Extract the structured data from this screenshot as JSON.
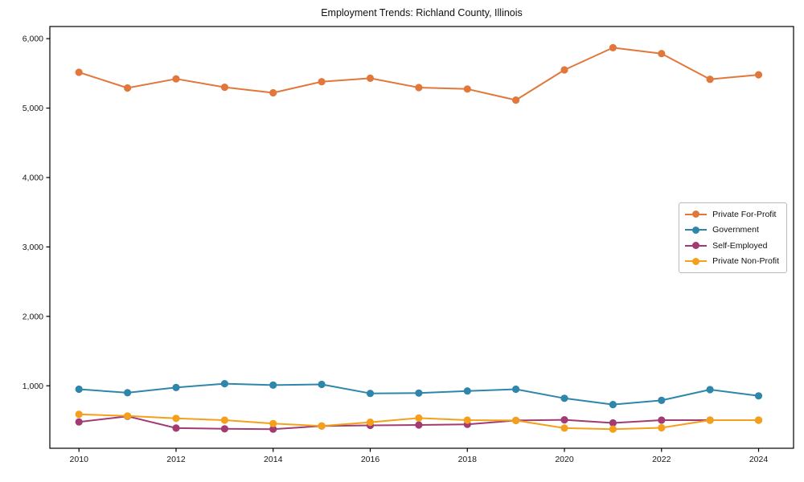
{
  "chart_data": {
    "type": "line",
    "title": "Employment Trends: Richland County, Illinois",
    "xlabel": "",
    "ylabel": "",
    "x": [
      2010,
      2011,
      2012,
      2013,
      2014,
      2015,
      2016,
      2017,
      2018,
      2019,
      2020,
      2021,
      2022,
      2023,
      2024
    ],
    "xlim": [
      2009.4,
      2024.72
    ],
    "ylim": [
      100,
      6175
    ],
    "xticks": [
      2010,
      2012,
      2014,
      2016,
      2018,
      2020,
      2022,
      2024
    ],
    "yticks": [
      1000,
      2000,
      3000,
      4000,
      5000,
      6000
    ],
    "ytick_labels": [
      "1,000",
      "2,000",
      "3,000",
      "4,000",
      "5,000",
      "6,000"
    ],
    "grid": false,
    "legend": {
      "position": "right",
      "border_color": "#bbbbbb"
    },
    "axis_color": "#000000",
    "series": [
      {
        "name": "Private For-Profit",
        "color": "#e2773c",
        "values": [
          5515,
          5290,
          5420,
          5300,
          5220,
          5380,
          5430,
          5295,
          5275,
          5115,
          5550,
          5870,
          5785,
          5415,
          5480
        ]
      },
      {
        "name": "Government",
        "color": "#2e86ab",
        "values": [
          950,
          900,
          975,
          1030,
          1010,
          1020,
          890,
          895,
          925,
          950,
          820,
          730,
          790,
          945,
          855
        ]
      },
      {
        "name": "Self-Employed",
        "color": "#a23b72",
        "values": [
          480,
          560,
          390,
          380,
          375,
          420,
          430,
          435,
          445,
          500,
          510,
          465,
          505,
          505,
          505
        ]
      },
      {
        "name": "Private Non-Profit",
        "color": "#f4a01a",
        "values": [
          590,
          565,
          530,
          505,
          455,
          420,
          475,
          535,
          505,
          500,
          390,
          375,
          395,
          505,
          505
        ]
      }
    ]
  }
}
